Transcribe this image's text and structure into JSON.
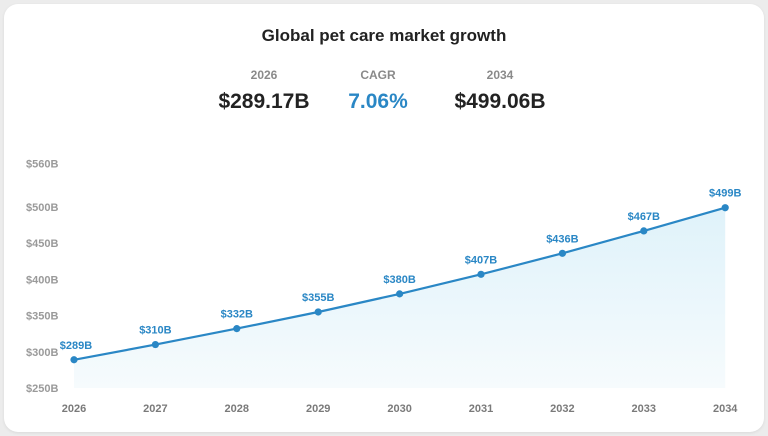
{
  "header": {
    "title": "Global pet care market growth",
    "stats": [
      {
        "label": "2026",
        "value": "$289.17B"
      },
      {
        "label": "CAGR",
        "value": "7.06%"
      },
      {
        "label": "2034",
        "value": "$499.06B"
      }
    ]
  },
  "colors": {
    "accent": "#2a87c5",
    "area": "#e8f6fb"
  },
  "chart_data": {
    "type": "area",
    "title": "Global pet care market growth",
    "x": [
      "2026",
      "2027",
      "2028",
      "2029",
      "2030",
      "2031",
      "2032",
      "2033",
      "2034"
    ],
    "values": [
      289,
      310,
      332,
      355,
      380,
      407,
      436,
      467,
      499
    ],
    "data_labels": [
      "$289B",
      "$310B",
      "$332B",
      "$355B",
      "$380B",
      "$407B",
      "$436B",
      "$467B",
      "$499B"
    ],
    "yticks": [
      250,
      300,
      350,
      400,
      450,
      500,
      560
    ],
    "ytick_labels": [
      "$250B",
      "$300B",
      "$350B",
      "$400B",
      "$450B",
      "$500B",
      "$560B"
    ],
    "ylim": [
      250,
      560
    ],
    "grid": false,
    "legend": "none"
  }
}
